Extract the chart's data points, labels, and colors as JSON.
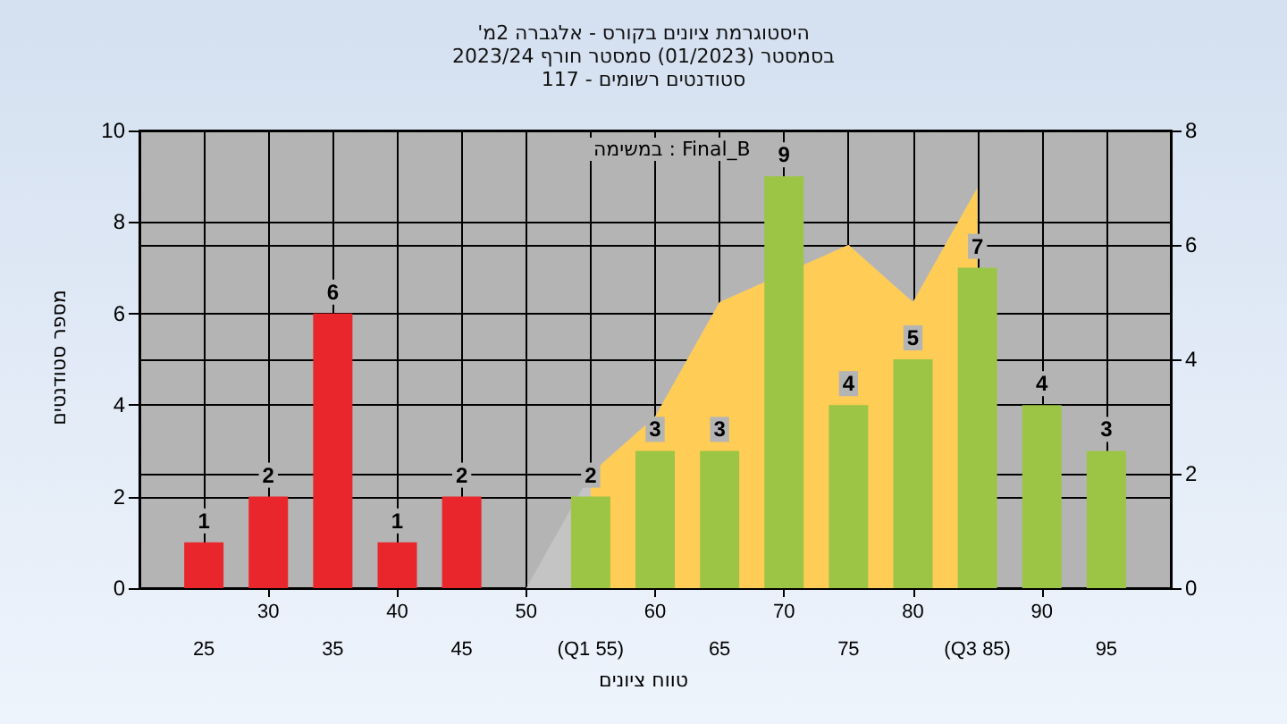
{
  "chart_data": {
    "type": "bar",
    "title": "היסטוגרמת ציונים בקורס - אלגברה 2מ'",
    "subtitle": "בסמסטר (01/2023) סמסטר חורף 2023/24\nסטודנטים רשומים - 117",
    "xlabel": "טווח ציונים",
    "ylabel": "מספר סטודנטים",
    "annotations": [
      "במשימה : Final_B"
    ],
    "x": [
      25,
      30,
      35,
      40,
      45,
      50,
      55,
      60,
      65,
      70,
      75,
      80,
      85,
      90,
      95
    ],
    "xlim": [
      20,
      100
    ],
    "xticks": [
      30,
      40,
      50,
      60,
      70,
      80,
      90
    ],
    "x2lim": [
      20,
      100
    ],
    "x2ticks": [
      25,
      35,
      45,
      {
        "value": 55,
        "label": "(Q1 55)"
      },
      65,
      75,
      {
        "value": 85,
        "label": "(Q3 85)"
      },
      95
    ],
    "ylim": [
      0,
      10
    ],
    "yticks": [
      0,
      2,
      4,
      6,
      8,
      10
    ],
    "y2lim": [
      0,
      8
    ],
    "y2ticks": [
      0,
      2,
      4,
      6,
      8
    ],
    "grid": true,
    "series": [
      {
        "type": "area",
        "axis": "y2",
        "color": "#c4c4c4",
        "x": [
          50,
          55,
          60,
          65,
          70,
          75,
          80,
          85
        ],
        "values": [
          0,
          2,
          3,
          5,
          null,
          6,
          5,
          7
        ]
      },
      {
        "type": "area",
        "axis": "y2",
        "color": "#ffcc55",
        "x": [
          55,
          60,
          65,
          70,
          75,
          80,
          85
        ],
        "values": [
          2,
          3,
          5,
          null,
          6,
          5,
          7
        ]
      },
      {
        "values": [
          1,
          2,
          6,
          1,
          2,
          0,
          2,
          3,
          3,
          9,
          4,
          5,
          7,
          4,
          3
        ],
        "colors": [
          "#e8262c",
          "#e8262c",
          "#e8262c",
          "#e8262c",
          "#e8262c",
          "#e8262c",
          "#9cc545",
          "#9cc545",
          "#9cc545",
          "#9cc545",
          "#9cc545",
          "#9cc545",
          "#9cc545",
          "#9cc545",
          "#9cc545"
        ],
        "value_labels": [
          "1",
          "2",
          "6",
          "1",
          "2",
          null,
          "2",
          "3",
          "3",
          "9",
          "4",
          "5",
          "7",
          "4",
          "3"
        ]
      }
    ]
  }
}
